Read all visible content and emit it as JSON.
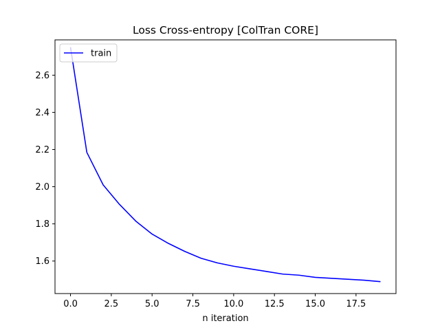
{
  "chart_data": {
    "type": "line",
    "title": "Loss Cross-entropy [ColTran CORE]",
    "xlabel": "n iteration",
    "ylabel": "",
    "xlim": [
      -0.95,
      19.95
    ],
    "ylim": [
      1.425,
      2.79
    ],
    "xticks": [
      0.0,
      2.5,
      5.0,
      7.5,
      10.0,
      12.5,
      15.0,
      17.5
    ],
    "xtick_labels": [
      "0.0",
      "2.5",
      "5.0",
      "7.5",
      "10.0",
      "12.5",
      "15.0",
      "17.5"
    ],
    "yticks": [
      1.6,
      1.8,
      2.0,
      2.2,
      2.4,
      2.6
    ],
    "ytick_labels": [
      "1.6",
      "1.8",
      "2.0",
      "2.2",
      "2.4",
      "2.6"
    ],
    "grid": false,
    "legend_position": "top-left",
    "series": [
      {
        "name": "train",
        "color": "#0000ff",
        "x": [
          0,
          1,
          2,
          3,
          4,
          5,
          6,
          7,
          8,
          9,
          10,
          11,
          12,
          13,
          14,
          15,
          16,
          17,
          18,
          19
        ],
        "y": [
          2.75,
          2.185,
          2.01,
          1.905,
          1.815,
          1.745,
          1.695,
          1.652,
          1.615,
          1.59,
          1.572,
          1.558,
          1.544,
          1.53,
          1.524,
          1.512,
          1.507,
          1.502,
          1.497,
          1.489
        ]
      }
    ]
  }
}
